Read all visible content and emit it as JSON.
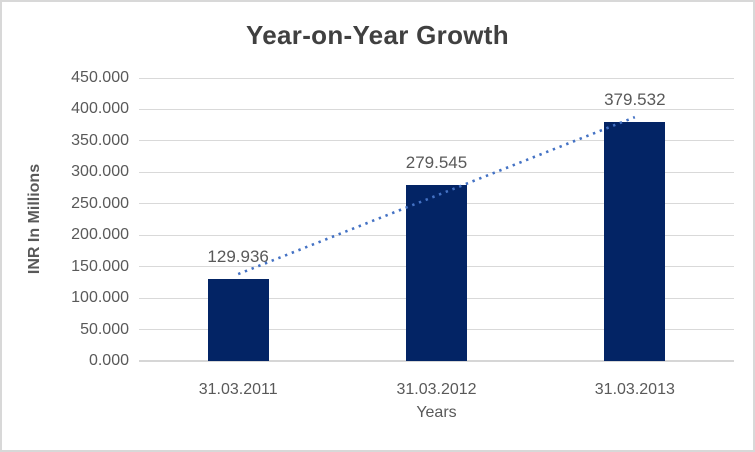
{
  "chart_data": {
    "type": "bar",
    "title": "Year-on-Year Growth",
    "xlabel": "Years",
    "ylabel": "INR In Millions",
    "categories": [
      "31.03.2011",
      "31.03.2012",
      "31.03.2013"
    ],
    "values": [
      129.936,
      279.545,
      379.532
    ],
    "data_labels": [
      "129.936",
      "279.545",
      "379.532"
    ],
    "ylim": [
      0,
      450
    ],
    "ytick_values": [
      0,
      50,
      100,
      150,
      200,
      250,
      300,
      350,
      400,
      450
    ],
    "ytick_labels": [
      "0.000",
      "50.000",
      "100.000",
      "150.000",
      "200.000",
      "250.000",
      "300.000",
      "350.000",
      "400.000",
      "450.000"
    ],
    "grid": true,
    "legend": "none",
    "trendline": {
      "type": "linear",
      "style": "dotted",
      "start_value": 138.2,
      "end_value": 387.8
    },
    "colors": {
      "bar": "#032465",
      "trendline": "#4472c4",
      "gridline": "#d9d9d9",
      "axis_line": "#d6d6d6",
      "title_text": "#404040",
      "label_text": "#595959",
      "border": "#d8d8d8",
      "background": "#ffffff"
    }
  }
}
